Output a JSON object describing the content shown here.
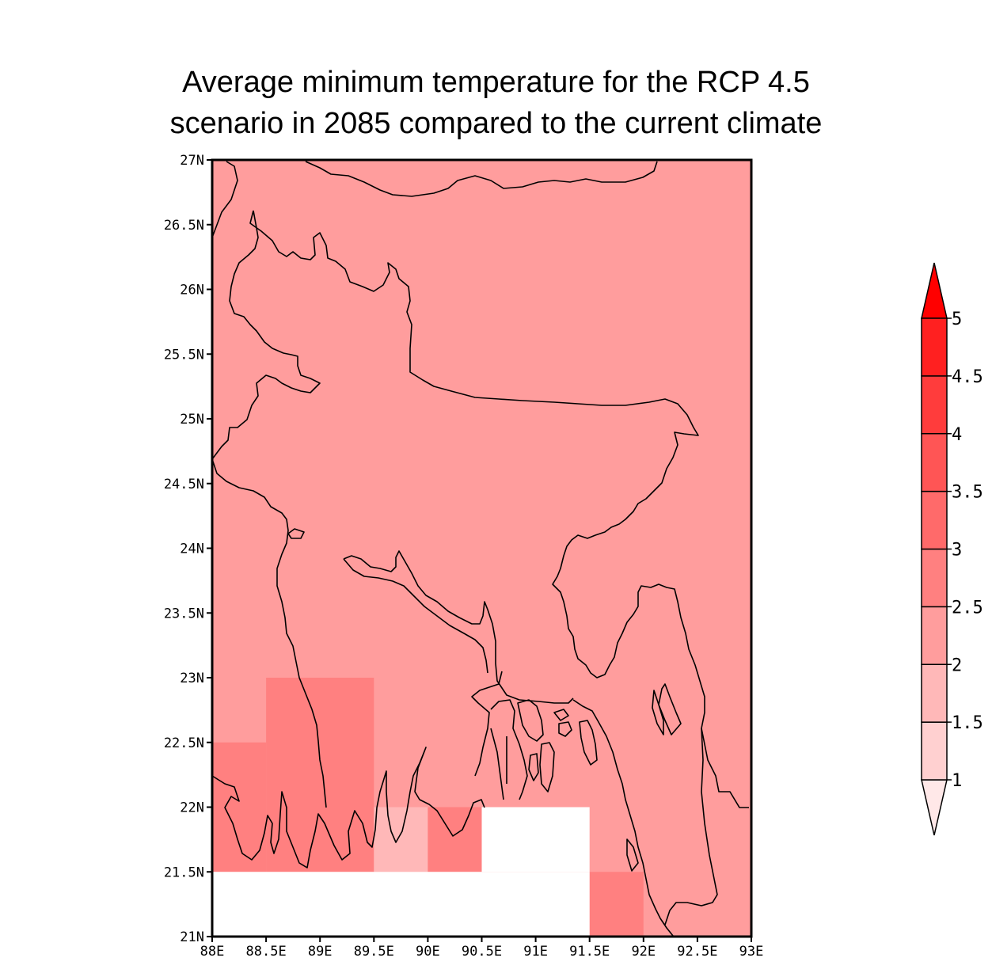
{
  "title": {
    "line1": "Average minimum temperature for the RCP 4.5",
    "line2": "scenario in 2085 compared to the current climate"
  },
  "map_data": {
    "lon_range": [
      88,
      93
    ],
    "lat_range": [
      21,
      27
    ],
    "lon_ticks": [
      "88E",
      "88.5E",
      "89E",
      "89.5E",
      "90E",
      "90.5E",
      "91E",
      "91.5E",
      "92E",
      "92.5E",
      "93E"
    ],
    "lat_ticks": [
      "27N",
      "26.5N",
      "26N",
      "25.5N",
      "25N",
      "24.5N",
      "24N",
      "23.5N",
      "23N",
      "22.5N",
      "22N",
      "21.5N",
      "21N"
    ],
    "background_value": 2.25,
    "cells": [
      {
        "lon0": 88.0,
        "lon1": 88.5,
        "lat0": 21.5,
        "lat1": 22.5,
        "value": 2.75
      },
      {
        "lon0": 88.5,
        "lon1": 89.5,
        "lat0": 21.5,
        "lat1": 23.0,
        "value": 2.75
      },
      {
        "lon0": 89.5,
        "lon1": 90.0,
        "lat0": 21.5,
        "lat1": 22.0,
        "value": 1.75
      },
      {
        "lon0": 90.0,
        "lon1": 90.5,
        "lat0": 21.5,
        "lat1": 22.0,
        "value": 2.75
      },
      {
        "lon0": 91.5,
        "lon1": 92.0,
        "lat0": 21.0,
        "lat1": 21.5,
        "value": 2.75
      },
      {
        "lon0": 88.0,
        "lon1": 91.5,
        "lat0": 21.0,
        "lat1": 21.5,
        "value": null
      },
      {
        "lon0": 90.5,
        "lon1": 91.5,
        "lat0": 21.5,
        "lat1": 22.0,
        "value": null
      }
    ]
  },
  "colorbar": {
    "levels": [
      1,
      1.5,
      2,
      2.5,
      3,
      3.5,
      4,
      4.5,
      5
    ],
    "labels": [
      "1",
      "1.5",
      "2",
      "2.5",
      "3",
      "3.5",
      "4",
      "4.5",
      "5"
    ],
    "colors": [
      "#ffd0d0",
      "#ffb8b8",
      "#ff9d9d",
      "#ff8080",
      "#ff6a6a",
      "#ff5555",
      "#ff3c3c",
      "#ff2020"
    ],
    "under_color": "#ffe8e8",
    "over_color": "#ff0000"
  }
}
